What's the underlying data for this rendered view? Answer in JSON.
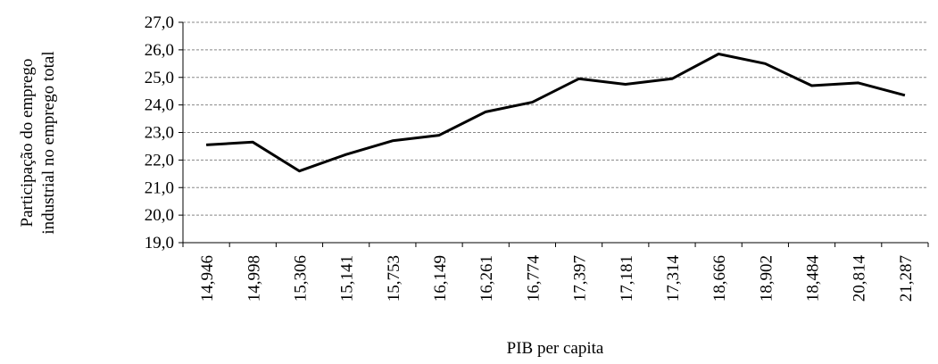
{
  "chart_data": {
    "type": "line",
    "xlabel": "PIB per capita",
    "ylabel": [
      "Participação do emprego",
      "industrial no emprego total"
    ],
    "categories": [
      "14,946",
      "14,998",
      "15,306",
      "15,141",
      "15,753",
      "16,149",
      "16,261",
      "16,774",
      "17,397",
      "17,181",
      "17,314",
      "18,666",
      "18,902",
      "18,484",
      "20,814",
      "21,287"
    ],
    "values": [
      22.55,
      22.65,
      21.6,
      22.2,
      22.7,
      22.9,
      23.75,
      24.1,
      24.95,
      24.75,
      24.95,
      25.85,
      25.5,
      24.7,
      24.8,
      24.35
    ],
    "color": "#000000",
    "ylim": [
      19,
      27
    ],
    "yticks": [
      {
        "value": 19,
        "label": "19,0"
      },
      {
        "value": 20,
        "label": "20,0"
      },
      {
        "value": 21,
        "label": "21,0"
      },
      {
        "value": 22,
        "label": "22,0"
      },
      {
        "value": 23,
        "label": "23,0"
      },
      {
        "value": 24,
        "label": "24,0"
      },
      {
        "value": 25,
        "label": "25,0"
      },
      {
        "value": 26,
        "label": "26,0"
      },
      {
        "value": 27,
        "label": "27,0"
      }
    ],
    "grid": true
  }
}
